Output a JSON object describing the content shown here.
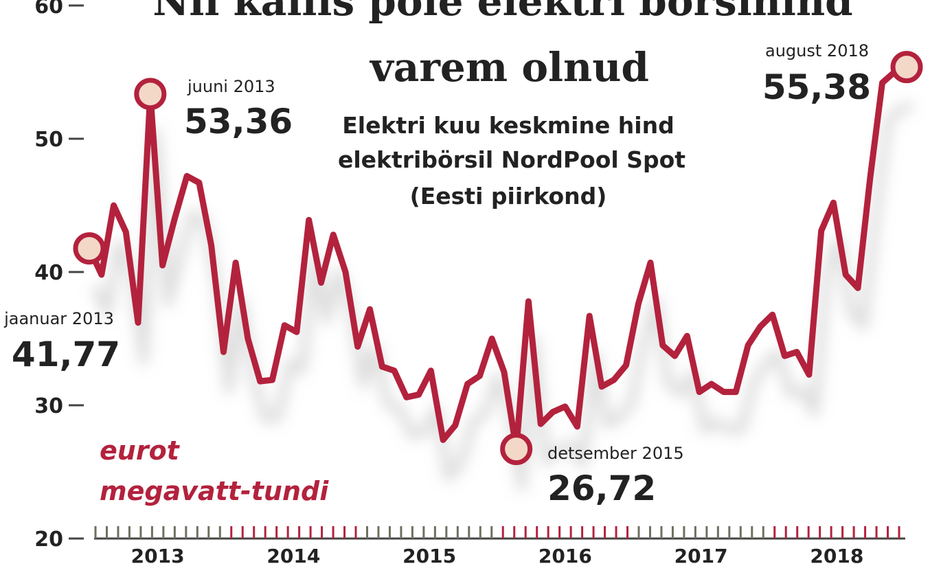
{
  "title": [
    "Nii kallis pole elektri börsihind",
    "varem olnud"
  ],
  "subtitle": [
    "Elektri kuu keskmine hind",
    "elektribörsil NordPool Spot",
    "(Eesti piirkond)"
  ],
  "unit_label": [
    "eurot",
    "megavatt-tundi"
  ],
  "colors": {
    "line": "#b3223d",
    "marker_fill": "#f3d8c8",
    "text": "#222222",
    "tick_gray": "#6f6f60",
    "tick_red": "#b3223d"
  },
  "annotations": [
    {
      "label": "jaanuar 2013",
      "value": "41,77",
      "index": 0
    },
    {
      "label": "juuni 2013",
      "value": "53,36",
      "index": 5
    },
    {
      "label": "detsember 2015",
      "value": "26,72",
      "index": 35
    },
    {
      "label": "august 2018",
      "value": "55,38",
      "index": 67
    }
  ],
  "chart_data": {
    "type": "line",
    "title": "Nii kallis pole elektri börsihind varem olnud",
    "subtitle": "Elektri kuu keskmine hind elektribörsil NordPool Spot (Eesti piirkond)",
    "ylabel": "eurot megavatt-tundi",
    "ylim": [
      20,
      60
    ],
    "yticks": [
      20,
      30,
      40,
      50,
      60
    ],
    "xticks": [
      "2013",
      "2014",
      "2015",
      "2016",
      "2017",
      "2018"
    ],
    "grid": false,
    "series": [
      {
        "values": [
          41.77,
          39.8,
          45.0,
          43.0,
          36.2,
          53.36,
          40.5,
          44.0,
          47.2,
          46.7,
          42.0,
          34.0,
          40.7,
          35.0,
          31.8,
          31.9,
          36.0,
          35.5,
          43.9,
          39.2,
          42.8,
          40.0,
          34.4,
          37.2,
          32.9,
          32.6,
          30.6,
          30.8,
          32.6,
          27.4,
          28.5,
          31.6,
          32.2,
          35.0,
          32.5,
          26.72,
          37.8,
          28.6,
          29.5,
          29.9,
          28.4,
          36.7,
          31.4,
          31.9,
          33.0,
          37.6,
          40.7,
          34.5,
          33.7,
          35.2,
          31.0,
          31.6,
          31.0,
          31.0,
          34.5,
          35.9,
          36.8,
          33.7,
          34.0,
          32.3,
          43.1,
          45.2,
          39.8,
          38.8,
          47.0,
          54.2,
          55.0,
          55.38
        ]
      }
    ]
  }
}
